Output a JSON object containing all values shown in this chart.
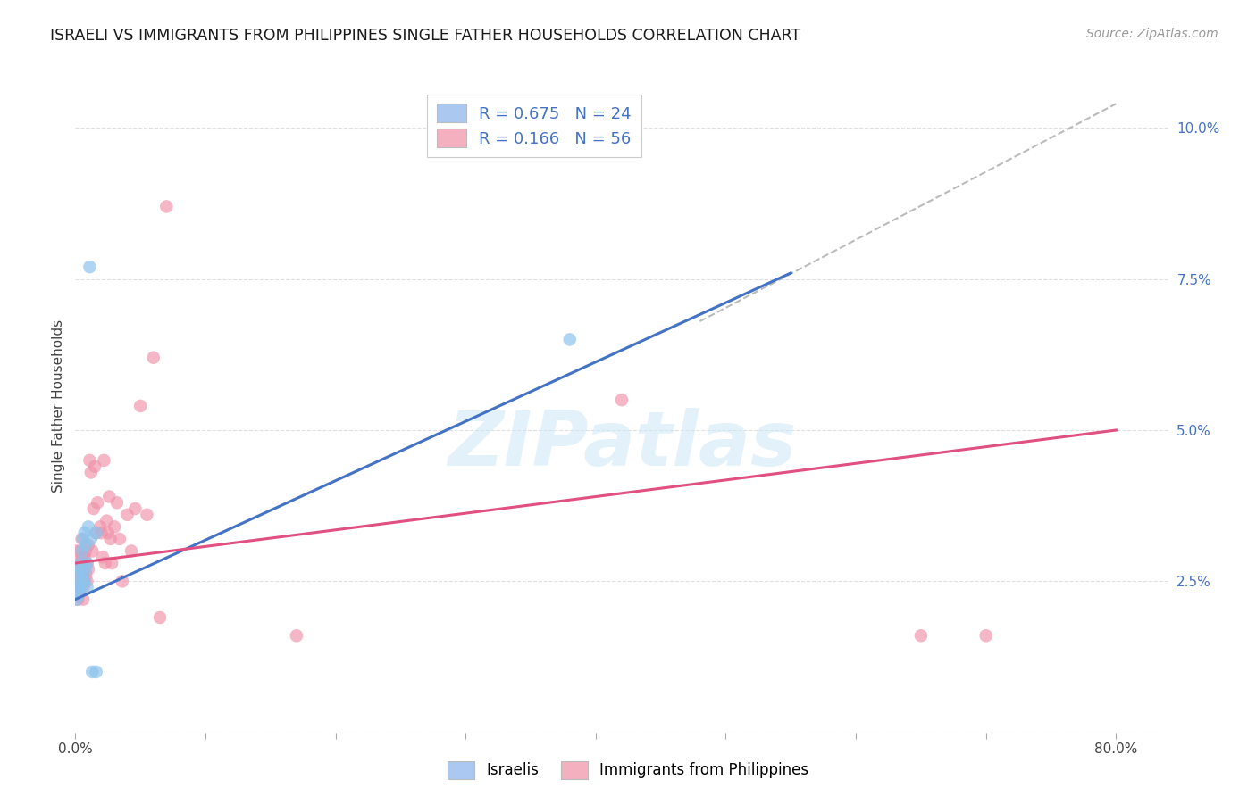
{
  "title": "ISRAELI VS IMMIGRANTS FROM PHILIPPINES SINGLE FATHER HOUSEHOLDS CORRELATION CHART",
  "source": "Source: ZipAtlas.com",
  "ylabel": "Single Father Households",
  "yticks": [
    0.0,
    0.025,
    0.05,
    0.075,
    0.1
  ],
  "ytick_labels": [
    "",
    "2.5%",
    "5.0%",
    "7.5%",
    "10.0%"
  ],
  "xticks": [
    0.0,
    0.1,
    0.2,
    0.3,
    0.4,
    0.5,
    0.6,
    0.7,
    0.8
  ],
  "xtick_labels_show": [
    "0.0%",
    "",
    "",
    "",
    "",
    "",
    "",
    "",
    "80.0%"
  ],
  "xlim": [
    0.0,
    0.84
  ],
  "ylim": [
    0.0,
    0.108
  ],
  "watermark": "ZIPatlas",
  "israelis_x": [
    0.001,
    0.002,
    0.002,
    0.003,
    0.003,
    0.004,
    0.004,
    0.005,
    0.005,
    0.006,
    0.006,
    0.007,
    0.007,
    0.008,
    0.008,
    0.009,
    0.009,
    0.01,
    0.011,
    0.012,
    0.013,
    0.016,
    0.016,
    0.38
  ],
  "israelis_y": [
    0.022,
    0.024,
    0.026,
    0.023,
    0.027,
    0.024,
    0.028,
    0.025,
    0.03,
    0.026,
    0.032,
    0.025,
    0.033,
    0.027,
    0.031,
    0.024,
    0.028,
    0.034,
    0.077,
    0.032,
    0.01,
    0.01,
    0.033,
    0.065
  ],
  "philippines_x": [
    0.001,
    0.001,
    0.002,
    0.002,
    0.003,
    0.003,
    0.003,
    0.004,
    0.004,
    0.005,
    0.005,
    0.005,
    0.006,
    0.006,
    0.006,
    0.007,
    0.007,
    0.008,
    0.008,
    0.009,
    0.009,
    0.01,
    0.01,
    0.011,
    0.012,
    0.013,
    0.014,
    0.015,
    0.016,
    0.017,
    0.019,
    0.02,
    0.021,
    0.022,
    0.023,
    0.024,
    0.025,
    0.026,
    0.027,
    0.028,
    0.03,
    0.032,
    0.034,
    0.036,
    0.04,
    0.043,
    0.046,
    0.05,
    0.055,
    0.06,
    0.065,
    0.07,
    0.17,
    0.42,
    0.65,
    0.7
  ],
  "philippines_y": [
    0.025,
    0.03,
    0.022,
    0.027,
    0.024,
    0.028,
    0.023,
    0.026,
    0.03,
    0.025,
    0.029,
    0.032,
    0.024,
    0.028,
    0.022,
    0.025,
    0.029,
    0.026,
    0.03,
    0.025,
    0.028,
    0.027,
    0.031,
    0.045,
    0.043,
    0.03,
    0.037,
    0.044,
    0.033,
    0.038,
    0.034,
    0.033,
    0.029,
    0.045,
    0.028,
    0.035,
    0.033,
    0.039,
    0.032,
    0.028,
    0.034,
    0.038,
    0.032,
    0.025,
    0.036,
    0.03,
    0.037,
    0.054,
    0.036,
    0.062,
    0.019,
    0.087,
    0.016,
    0.055,
    0.016,
    0.016
  ],
  "blue_line_x": [
    0.0,
    0.55
  ],
  "blue_line_y": [
    0.022,
    0.076
  ],
  "pink_line_x": [
    0.0,
    0.8
  ],
  "pink_line_y": [
    0.028,
    0.05
  ],
  "dashed_line_x": [
    0.48,
    0.8
  ],
  "dashed_line_y": [
    0.068,
    0.104
  ],
  "dot_color_israelis": "#8dc4ed",
  "dot_color_philippines": "#f090a8",
  "line_color_israelis": "#4472c4",
  "line_color_philippines": "#e05080",
  "background_color": "#ffffff",
  "grid_color": "#e0e0e0",
  "legend1_label": "R = 0.675   N = 24",
  "legend2_label": "R = 0.166   N = 56",
  "legend1_color": "#aac8f0",
  "legend2_color": "#f5b0c0",
  "bottom_legend1": "Israelis",
  "bottom_legend2": "Immigrants from Philippines"
}
